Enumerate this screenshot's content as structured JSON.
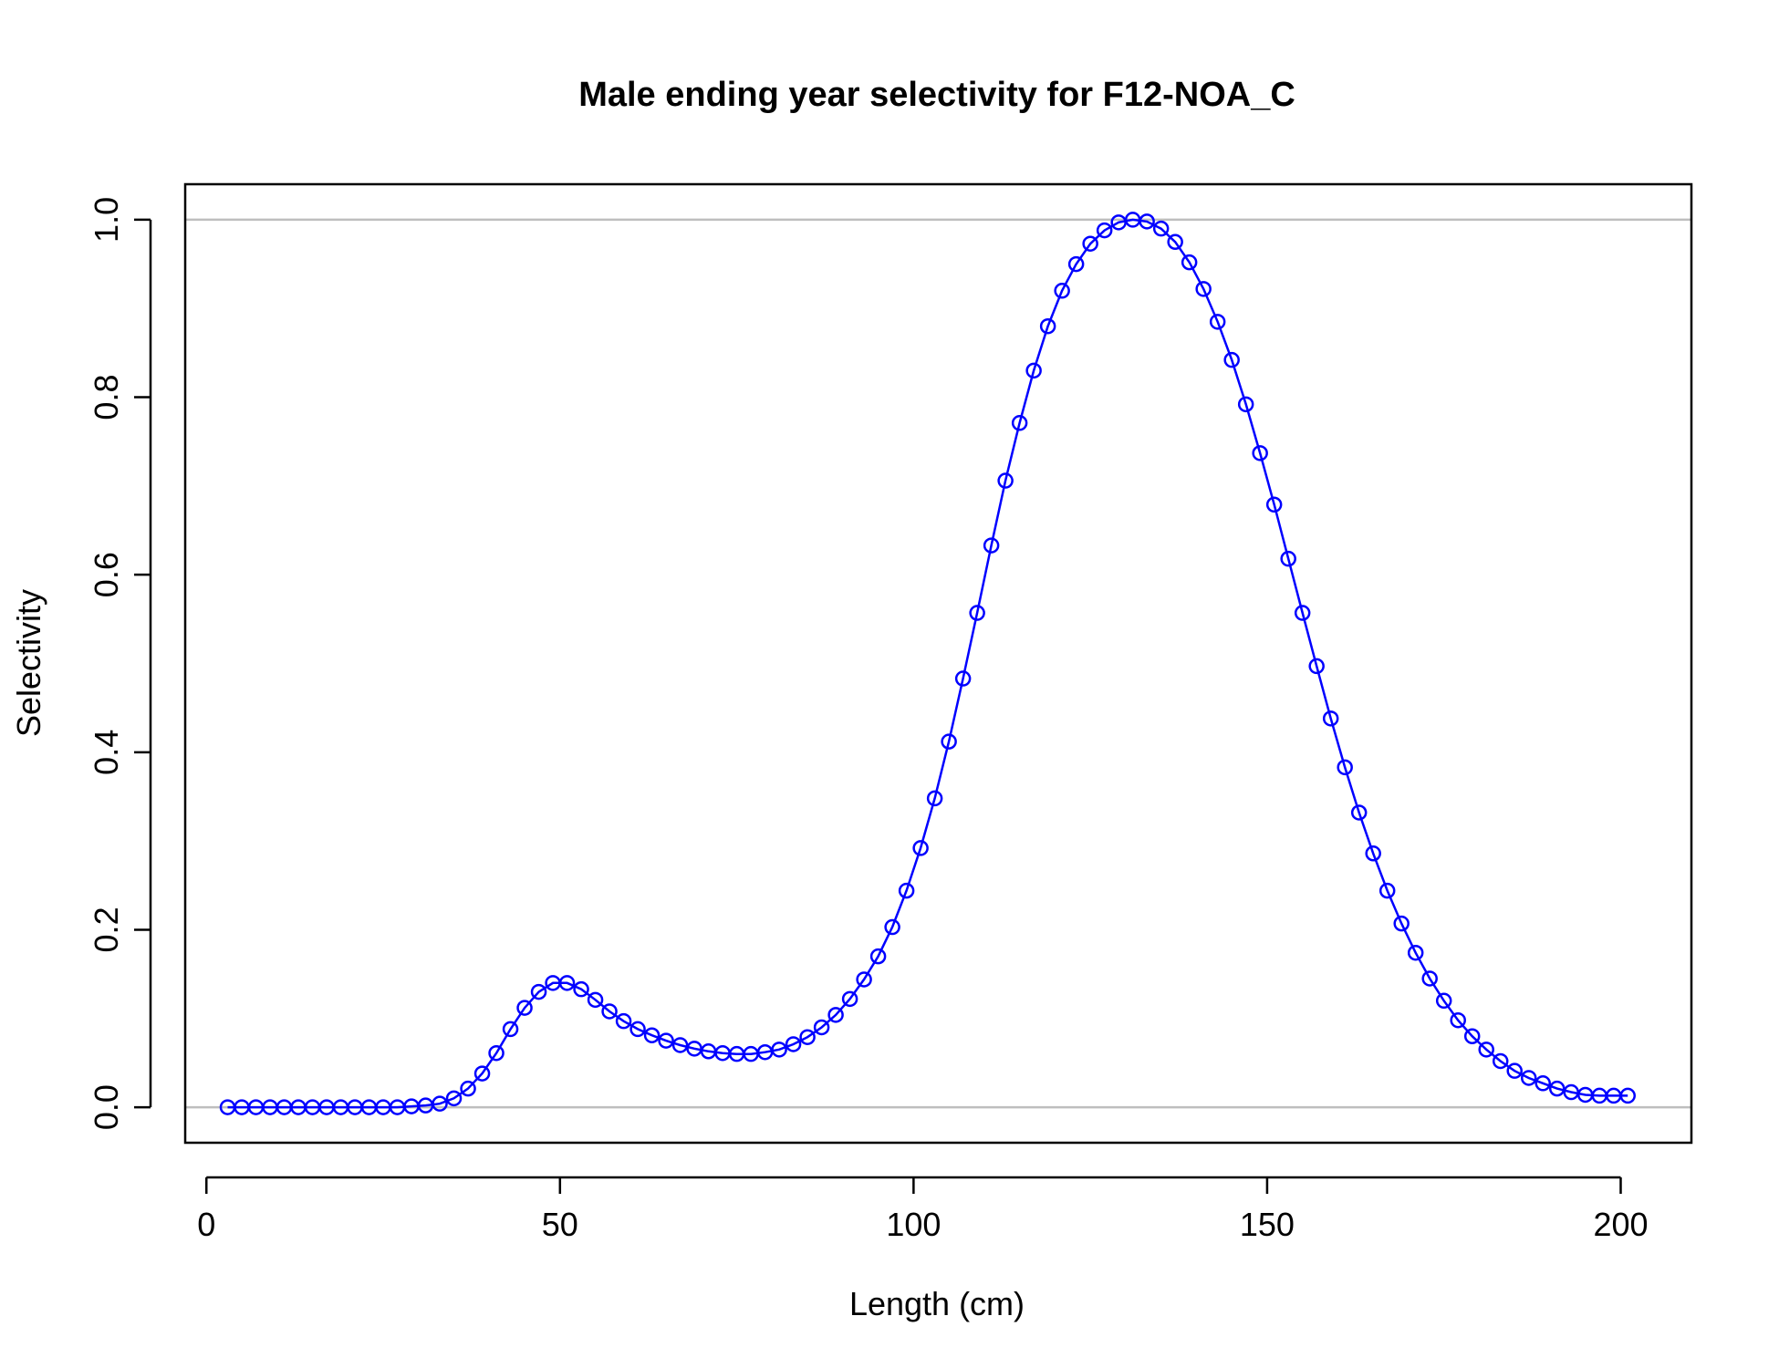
{
  "chart_data": {
    "type": "line",
    "title": "Male ending year selectivity for F12-NOA_C",
    "xlabel": "Length (cm)",
    "ylabel": "Selectivity",
    "xlim": [
      -3,
      210
    ],
    "ylim": [
      -0.04,
      1.04
    ],
    "xticks": [
      0,
      50,
      100,
      150,
      200
    ],
    "yticks": [
      0.0,
      0.2,
      0.4,
      0.6,
      0.8,
      1.0
    ],
    "xtick_labels": [
      "0",
      "50",
      "100",
      "150",
      "200"
    ],
    "ytick_labels": [
      "0.0",
      "0.2",
      "0.4",
      "0.6",
      "0.8",
      "1.0"
    ],
    "reference_lines_y": [
      0,
      1
    ],
    "grid": false,
    "colors": {
      "series": "#0000ff",
      "reference": "#bebebe",
      "axes": "#000000"
    },
    "series": [
      {
        "marker": "open-circle",
        "x": [
          3,
          5,
          7,
          9,
          11,
          13,
          15,
          17,
          19,
          21,
          23,
          25,
          27,
          29,
          31,
          33,
          35,
          37,
          39,
          41,
          43,
          45,
          47,
          49,
          51,
          53,
          55,
          57,
          59,
          61,
          63,
          65,
          67,
          69,
          71,
          73,
          75,
          77,
          79,
          81,
          83,
          85,
          87,
          89,
          91,
          93,
          95,
          97,
          99,
          101,
          103,
          105,
          107,
          109,
          111,
          113,
          115,
          117,
          119,
          121,
          123,
          125,
          127,
          129,
          131,
          133,
          135,
          137,
          139,
          141,
          143,
          145,
          147,
          149,
          151,
          153,
          155,
          157,
          159,
          161,
          163,
          165,
          167,
          169,
          171,
          173,
          175,
          177,
          179,
          181,
          183,
          185,
          187,
          189,
          191,
          193,
          195,
          197,
          199,
          201
        ],
        "y": [
          0.0,
          0.0,
          0.0,
          0.0,
          0.0,
          0.0,
          0.0,
          0.0,
          0.0,
          0.0,
          0.0,
          0.0,
          0.0,
          0.001,
          0.002,
          0.004,
          0.01,
          0.021,
          0.038,
          0.061,
          0.088,
          0.112,
          0.13,
          0.14,
          0.14,
          0.133,
          0.121,
          0.108,
          0.097,
          0.088,
          0.081,
          0.075,
          0.07,
          0.066,
          0.063,
          0.061,
          0.06,
          0.06,
          0.062,
          0.065,
          0.071,
          0.079,
          0.09,
          0.104,
          0.122,
          0.144,
          0.17,
          0.203,
          0.244,
          0.292,
          0.348,
          0.412,
          0.483,
          0.557,
          0.633,
          0.706,
          0.771,
          0.83,
          0.88,
          0.92,
          0.95,
          0.973,
          0.988,
          0.997,
          1.0,
          0.998,
          0.99,
          0.975,
          0.952,
          0.922,
          0.885,
          0.842,
          0.792,
          0.737,
          0.679,
          0.618,
          0.557,
          0.497,
          0.438,
          0.383,
          0.332,
          0.286,
          0.244,
          0.207,
          0.174,
          0.145,
          0.12,
          0.098,
          0.08,
          0.065,
          0.052,
          0.041,
          0.033,
          0.027,
          0.021,
          0.017,
          0.014,
          0.013,
          0.013,
          0.013
        ]
      }
    ]
  }
}
